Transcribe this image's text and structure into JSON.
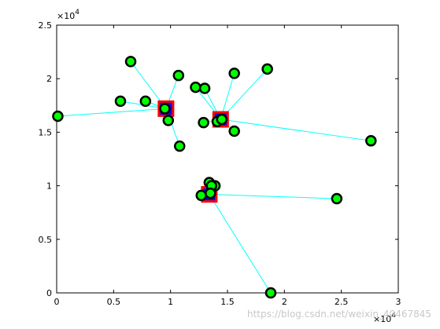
{
  "chart_data": {
    "type": "scatter",
    "title": "",
    "xlabel": "",
    "ylabel": "",
    "xlim": [
      0,
      30000
    ],
    "ylim": [
      0,
      25000
    ],
    "grid": false,
    "x_ticks": [
      0,
      5000,
      10000,
      15000,
      20000,
      25000,
      30000
    ],
    "x_tick_labels": [
      "0",
      "0.5",
      "1",
      "1.5",
      "2",
      "2.5",
      "3"
    ],
    "y_ticks": [
      0,
      5000,
      10000,
      15000,
      20000,
      25000
    ],
    "y_tick_labels": [
      "0",
      "0.5",
      "1",
      "1.5",
      "2",
      "2.5"
    ],
    "x_exponent_label": "×10",
    "x_exponent_power": "4",
    "y_exponent_label": "×10",
    "y_exponent_power": "4",
    "colors": {
      "point_fill": "#00ff00",
      "point_edge": "#000000",
      "center_fill": "#0000ff",
      "center_edge": "#ff0000",
      "link_line": "#00ffff",
      "axes": "#000000"
    },
    "centers": [
      {
        "x": 9600,
        "y": 17200
      },
      {
        "x": 14400,
        "y": 16200
      },
      {
        "x": 13400,
        "y": 9200
      }
    ],
    "points": [
      {
        "x": 6500,
        "y": 21600,
        "cluster": 0
      },
      {
        "x": 10700,
        "y": 20300,
        "cluster": 0
      },
      {
        "x": 5600,
        "y": 17900,
        "cluster": 0
      },
      {
        "x": 7800,
        "y": 17900,
        "cluster": 0
      },
      {
        "x": 100,
        "y": 16500,
        "cluster": 0
      },
      {
        "x": 9800,
        "y": 16100,
        "cluster": 0
      },
      {
        "x": 10800,
        "y": 13700,
        "cluster": 0
      },
      {
        "x": 9500,
        "y": 17200,
        "cluster": 0
      },
      {
        "x": 12200,
        "y": 19200,
        "cluster": 1
      },
      {
        "x": 13000,
        "y": 19100,
        "cluster": 1
      },
      {
        "x": 15600,
        "y": 20500,
        "cluster": 1
      },
      {
        "x": 18500,
        "y": 20900,
        "cluster": 1
      },
      {
        "x": 12900,
        "y": 15900,
        "cluster": 1
      },
      {
        "x": 14100,
        "y": 16000,
        "cluster": 1
      },
      {
        "x": 15600,
        "y": 15100,
        "cluster": 1
      },
      {
        "x": 27600,
        "y": 14200,
        "cluster": 1
      },
      {
        "x": 14500,
        "y": 16200,
        "cluster": 1
      },
      {
        "x": 13400,
        "y": 10300,
        "cluster": 2
      },
      {
        "x": 13900,
        "y": 10000,
        "cluster": 2
      },
      {
        "x": 13600,
        "y": 10000,
        "cluster": 2
      },
      {
        "x": 12700,
        "y": 9100,
        "cluster": 2
      },
      {
        "x": 13500,
        "y": 9300,
        "cluster": 2
      },
      {
        "x": 24600,
        "y": 8800,
        "cluster": 2
      },
      {
        "x": 18800,
        "y": 0,
        "cluster": 2
      }
    ]
  },
  "watermark": "https://blog.csdn.net/weixin_40467845"
}
